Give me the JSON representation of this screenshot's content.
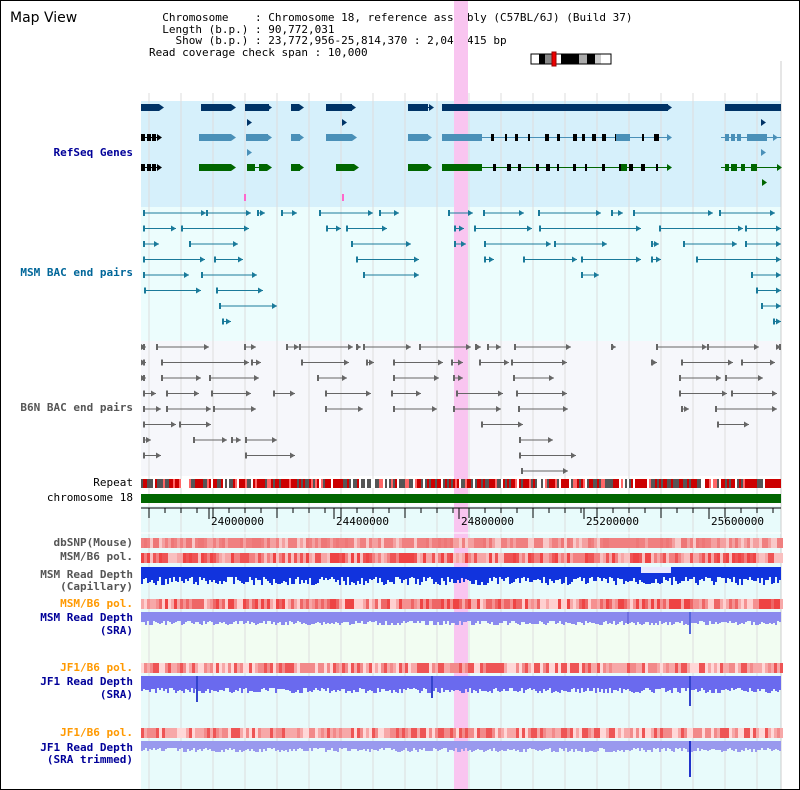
{
  "page_title": "Map View",
  "header": {
    "chromosome_key": "Chromosome",
    "chromosome_value": "Chromosome 18, reference assembly (C57BL/6J) (Build 37)",
    "length_key": "Length (b.p.)",
    "length_value": "90,772,031",
    "show_key": "Show (b.p.)",
    "show_value": "23,772,956-25,814,370 : 2,041,415 bp",
    "coverage_key": "Read coverage check span",
    "coverage_value": "10,000"
  },
  "tracks": {
    "refseq": "RefSeq Genes",
    "msm_bac": "MSM BAC end pairs",
    "b6n_bac": "B6N BAC end pairs",
    "repeat": "Repeat",
    "chromosome": "chromosome 18",
    "dbsnp": "dbSNP(Mouse)",
    "msm_b6_pol_1": "MSM/B6 pol.",
    "msm_read_depth_cap_1": "MSM Read Depth",
    "msm_read_depth_cap_2": "(Capillary)",
    "msm_b6_pol_2": "MSM/B6 pol.",
    "msm_read_depth_sra_1": "MSM Read Depth",
    "msm_read_depth_sra_2": "(SRA)",
    "jf1_b6_pol_1": "JF1/B6 pol.",
    "jf1_read_depth_sra_1": "JF1 Read Depth",
    "jf1_read_depth_sra_2": "(SRA)",
    "jf1_b6_pol_2": "JF1/B6 pol.",
    "jf1_read_depth_trim_1": "JF1 Read Depth",
    "jf1_read_depth_trim_2": "(SRA trimmed)"
  },
  "axis": {
    "ticks": [
      "24000000",
      "24400000",
      "24800000",
      "25200000",
      "25600000"
    ]
  },
  "colors": {
    "label_blue": "#000099",
    "label_orange": "#ff9900",
    "highlight": "#f9c5f0",
    "refseq_bg": "#d6f0fb",
    "bac_bg": "#ecfdfd",
    "b6n_bg": "#f6f7fb",
    "chromosome_bar": "#006600"
  }
}
